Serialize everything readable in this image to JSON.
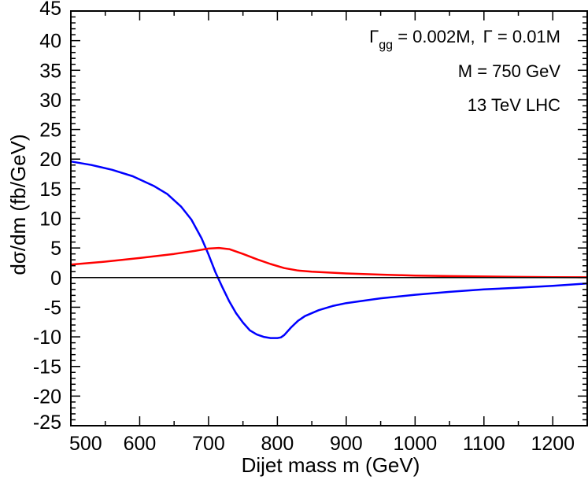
{
  "chart_data": {
    "type": "line",
    "title": "",
    "xlabel": "Dijet mass m  (GeV)",
    "ylabel": "dσ/dm   (fb/GeV)",
    "xlim": [
      500,
      1250
    ],
    "ylim": [
      -25,
      45
    ],
    "x_ticks": [
      500,
      600,
      700,
      800,
      900,
      1000,
      1100,
      1200
    ],
    "y_ticks": [
      -25,
      -20,
      -15,
      -10,
      -5,
      0,
      5,
      10,
      15,
      20,
      25,
      30,
      35,
      40,
      45
    ],
    "grid": false,
    "annotations": [
      {
        "gamma_gg_symbol": "Γ",
        "gamma_gg_sub": "gg",
        "gamma_gg_value": " = 0.002M,",
        "gamma_symbol": "Γ",
        "gamma_value": " = 0.01M"
      },
      {
        "text": "M = 750 GeV"
      },
      {
        "text": "13 TeV LHC"
      }
    ],
    "series": [
      {
        "name": "blue",
        "color": "#0000ff",
        "x": [
          500,
          530,
          560,
          590,
          620,
          640,
          660,
          675,
          690,
          700,
          710,
          720,
          730,
          740,
          750,
          760,
          770,
          780,
          790,
          800,
          805,
          810,
          820,
          830,
          840,
          860,
          880,
          900,
          950,
          1000,
          1050,
          1100,
          1150,
          1200,
          1250
        ],
        "y": [
          19.6,
          19.0,
          18.2,
          17.1,
          15.5,
          14.1,
          12.0,
          9.8,
          6.6,
          3.9,
          0.9,
          -1.6,
          -4.0,
          -6.0,
          -7.6,
          -8.9,
          -9.6,
          -10.0,
          -10.2,
          -10.2,
          -10.1,
          -9.7,
          -8.4,
          -7.3,
          -6.5,
          -5.5,
          -4.8,
          -4.3,
          -3.5,
          -2.9,
          -2.4,
          -2.0,
          -1.7,
          -1.4,
          -1.0
        ]
      },
      {
        "name": "red",
        "color": "#ff0000",
        "x": [
          500,
          550,
          600,
          650,
          680,
          700,
          715,
          730,
          750,
          770,
          790,
          810,
          830,
          850,
          900,
          950,
          1000,
          1050,
          1100,
          1150,
          1200,
          1250
        ],
        "y": [
          2.2,
          2.7,
          3.3,
          4.0,
          4.5,
          4.9,
          5.0,
          4.8,
          4.0,
          3.1,
          2.3,
          1.6,
          1.2,
          1.0,
          0.7,
          0.5,
          0.35,
          0.25,
          0.18,
          0.12,
          0.08,
          0.05
        ]
      },
      {
        "name": "zero-line",
        "color": "#000000",
        "x": [
          500,
          1250
        ],
        "y": [
          0,
          0
        ]
      }
    ]
  }
}
